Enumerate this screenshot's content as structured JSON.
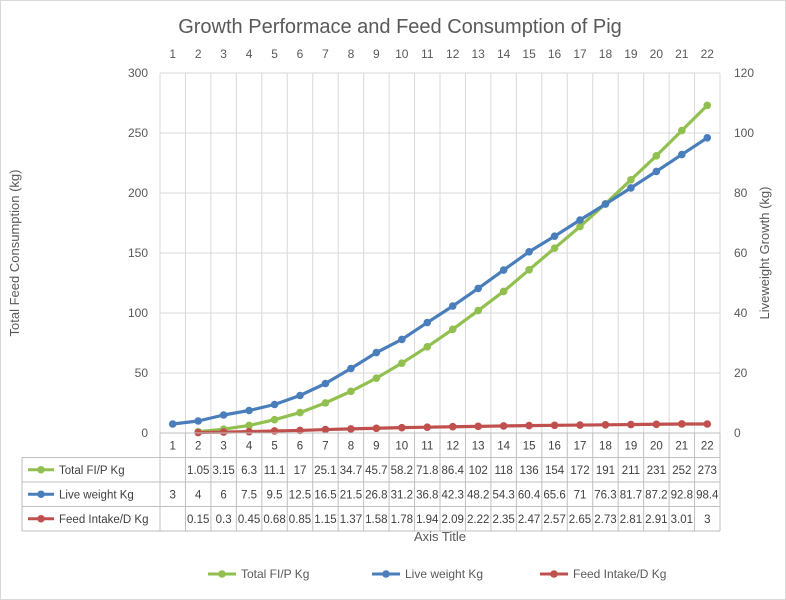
{
  "chart_data": {
    "type": "line",
    "title": "Growth Performace and Feed Consumption of Pig",
    "xlabel": "Axis Title",
    "ylabel": "Total Feed  Consumption (kg)",
    "y2label": "Liveweight Growth  (kg)",
    "ylim": [
      0,
      300
    ],
    "y2lim": [
      0,
      120
    ],
    "yticks": [
      "0",
      "50",
      "100",
      "150",
      "200",
      "250",
      "300"
    ],
    "y2ticks": [
      "0",
      "20",
      "40",
      "60",
      "80",
      "100",
      "120"
    ],
    "categories": [
      "1",
      "2",
      "3",
      "4",
      "5",
      "6",
      "7",
      "8",
      "9",
      "10",
      "11",
      "12",
      "13",
      "14",
      "15",
      "16",
      "17",
      "18",
      "19",
      "20",
      "21",
      "22"
    ],
    "legend_position": "bottom",
    "series": [
      {
        "name": "Total FI/P Kg",
        "axis": "left",
        "color": "#92c050",
        "values": [
          null,
          1.05,
          3.15,
          6.3,
          11.1,
          17,
          25.1,
          34.7,
          45.7,
          58.2,
          71.8,
          86.4,
          102,
          118,
          136,
          154,
          172,
          191,
          211,
          231,
          252,
          273
        ],
        "labels": [
          "",
          "1.05",
          "3.15",
          "6.3",
          "11.1",
          "17",
          "25.1",
          "34.7",
          "45.7",
          "58.2",
          "71.8",
          "86.4",
          "102",
          "118",
          "136",
          "154",
          "172",
          "191",
          "211",
          "231",
          "252",
          "273"
        ]
      },
      {
        "name": "Live weight Kg",
        "axis": "right",
        "color": "#4a7ebb",
        "values": [
          3,
          4,
          6,
          7.5,
          9.5,
          12.5,
          16.5,
          21.5,
          26.8,
          31.2,
          36.8,
          42.3,
          48.2,
          54.3,
          60.4,
          65.6,
          71,
          76.3,
          81.7,
          87.2,
          92.8,
          98.4
        ],
        "labels": [
          "3",
          "4",
          "6",
          "7.5",
          "9.5",
          "12.5",
          "16.5",
          "21.5",
          "26.8",
          "31.2",
          "36.8",
          "42.3",
          "48.2",
          "54.3",
          "60.4",
          "65.6",
          "71",
          "76.3",
          "81.7",
          "87.2",
          "92.8",
          "98.4"
        ]
      },
      {
        "name": "Feed Intake/D Kg",
        "axis": "right",
        "color": "#c0504d",
        "values": [
          null,
          0.15,
          0.3,
          0.45,
          0.68,
          0.85,
          1.15,
          1.37,
          1.58,
          1.78,
          1.94,
          2.09,
          2.22,
          2.35,
          2.47,
          2.57,
          2.65,
          2.73,
          2.81,
          2.91,
          3.01,
          3
        ],
        "labels": [
          "",
          "0.15",
          "0.3",
          "0.45",
          "0.68",
          "0.85",
          "1.15",
          "1.37",
          "1.58",
          "1.78",
          "1.94",
          "2.09",
          "2.22",
          "2.35",
          "2.47",
          "2.57",
          "2.65",
          "2.73",
          "2.81",
          "2.91",
          "3.01",
          "3"
        ]
      }
    ]
  }
}
